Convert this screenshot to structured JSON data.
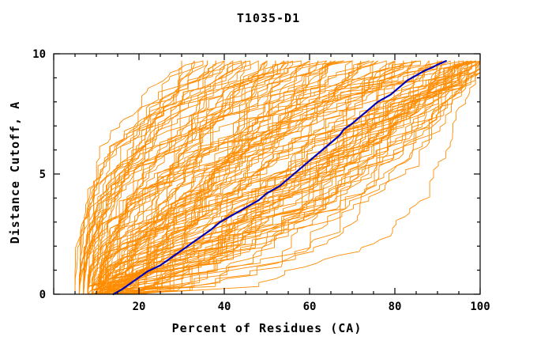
{
  "title": "T1035-D1",
  "axes": {
    "x": {
      "label": "Percent of Residues (CA)",
      "min": 0,
      "max": 100,
      "labeled_values": [
        20,
        40,
        60,
        80,
        100
      ],
      "tick_labels": [
        "20",
        "40",
        "60",
        "80",
        "100"
      ],
      "minor_step": 5
    },
    "y": {
      "label": "Distance Cutoff, A",
      "min": 0,
      "max": 10,
      "labeled_values": [
        0,
        5,
        10
      ],
      "tick_labels": [
        "0",
        "5",
        "10"
      ],
      "minor_step": 1
    }
  },
  "colors": {
    "ensemble": "#ff8c00",
    "highlight": "#0000b8",
    "axis": "#000000",
    "background": "#ffffff"
  },
  "chart_data": {
    "type": "line",
    "title": "T1035-D1",
    "xlabel": "Percent of Residues (CA)",
    "ylabel": "Distance Cutoff, A",
    "xlim": [
      0,
      100
    ],
    "ylim": [
      0,
      10
    ],
    "grid": false,
    "legend": "none",
    "highlight_series": {
      "color": "#0000b8",
      "points": [
        [
          14,
          0
        ],
        [
          16,
          0.2
        ],
        [
          18,
          0.45
        ],
        [
          20,
          0.7
        ],
        [
          22,
          0.95
        ],
        [
          25,
          1.2
        ],
        [
          27,
          1.45
        ],
        [
          29,
          1.7
        ],
        [
          31,
          1.95
        ],
        [
          33,
          2.2
        ],
        [
          35,
          2.45
        ],
        [
          37,
          2.7
        ],
        [
          39,
          3.0
        ],
        [
          42,
          3.3
        ],
        [
          45,
          3.6
        ],
        [
          48,
          3.9
        ],
        [
          50,
          4.2
        ],
        [
          53,
          4.5
        ],
        [
          55,
          4.8
        ],
        [
          57,
          5.1
        ],
        [
          59,
          5.4
        ],
        [
          61,
          5.7
        ],
        [
          63,
          6.0
        ],
        [
          65,
          6.3
        ],
        [
          67,
          6.6
        ],
        [
          68,
          6.85
        ],
        [
          70,
          7.1
        ],
        [
          72,
          7.4
        ],
        [
          74,
          7.7
        ],
        [
          76,
          8.0
        ],
        [
          79,
          8.3
        ],
        [
          81,
          8.6
        ],
        [
          83,
          8.9
        ],
        [
          85,
          9.1
        ],
        [
          87,
          9.3
        ],
        [
          89,
          9.45
        ],
        [
          90,
          9.55
        ],
        [
          91,
          9.62
        ],
        [
          92,
          9.7
        ]
      ]
    },
    "ensemble": {
      "color": "#ff8c00",
      "y_top": 9.7,
      "passes": 2,
      "anchors_note": "each curve encoded as [x_at_y0, x_at_ytop, shape_gamma]",
      "curves": [
        [
          6,
          30,
          2.2
        ],
        [
          7,
          33,
          1.8
        ],
        [
          5,
          35,
          2.6
        ],
        [
          8,
          36,
          1.2
        ],
        [
          6,
          38,
          2.0
        ],
        [
          9,
          40,
          0.8
        ],
        [
          7,
          40,
          2.8
        ],
        [
          10,
          42,
          1.5
        ],
        [
          6,
          44,
          2.2
        ],
        [
          8,
          45,
          0.6
        ],
        [
          11,
          46,
          1.9
        ],
        [
          7,
          48,
          2.4
        ],
        [
          9,
          50,
          1.1
        ],
        [
          12,
          50,
          0.7
        ],
        [
          6,
          52,
          2.0
        ],
        [
          10,
          54,
          1.6
        ],
        [
          8,
          55,
          0.5
        ],
        [
          13,
          56,
          1.3
        ],
        [
          7,
          58,
          2.5
        ],
        [
          11,
          60,
          0.9
        ],
        [
          9,
          60,
          1.8
        ],
        [
          14,
          62,
          0.6
        ],
        [
          8,
          64,
          2.1
        ],
        [
          12,
          65,
          1.4
        ],
        [
          10,
          66,
          0.8
        ],
        [
          7,
          68,
          2.3
        ],
        [
          15,
          70,
          0.5
        ],
        [
          9,
          70,
          1.7
        ],
        [
          13,
          72,
          1.0
        ],
        [
          8,
          74,
          2.0
        ],
        [
          11,
          75,
          0.7
        ],
        [
          16,
          76,
          1.5
        ],
        [
          10,
          78,
          0.9
        ],
        [
          9,
          80,
          1.9
        ],
        [
          14,
          80,
          0.6
        ],
        [
          12,
          82,
          1.2
        ],
        [
          8,
          84,
          2.2
        ],
        [
          17,
          85,
          0.8
        ],
        [
          11,
          86,
          1.6
        ],
        [
          10,
          88,
          0.5
        ],
        [
          15,
          90,
          1.1
        ],
        [
          9,
          90,
          1.9
        ],
        [
          13,
          91,
          0.7
        ],
        [
          12,
          92,
          1.4
        ],
        [
          10,
          93,
          0.9
        ],
        [
          18,
          94,
          0.6
        ],
        [
          11,
          95,
          1.7
        ],
        [
          14,
          95,
          0.4
        ],
        [
          9,
          96,
          1.2
        ],
        [
          16,
          96,
          0.8
        ],
        [
          12,
          97,
          0.5
        ],
        [
          10,
          97,
          1.5
        ],
        [
          19,
          98,
          0.7
        ],
        [
          13,
          98,
          0.35
        ],
        [
          11,
          98,
          1.0
        ],
        [
          15,
          99,
          0.5
        ],
        [
          9,
          99,
          0.8
        ],
        [
          17,
          99,
          0.3
        ],
        [
          12,
          100,
          0.6
        ],
        [
          20,
          100,
          0.4
        ],
        [
          10,
          100,
          1.1
        ],
        [
          14,
          100,
          0.3
        ],
        [
          8,
          100,
          0.7
        ],
        [
          16,
          100,
          0.25
        ]
      ]
    }
  }
}
